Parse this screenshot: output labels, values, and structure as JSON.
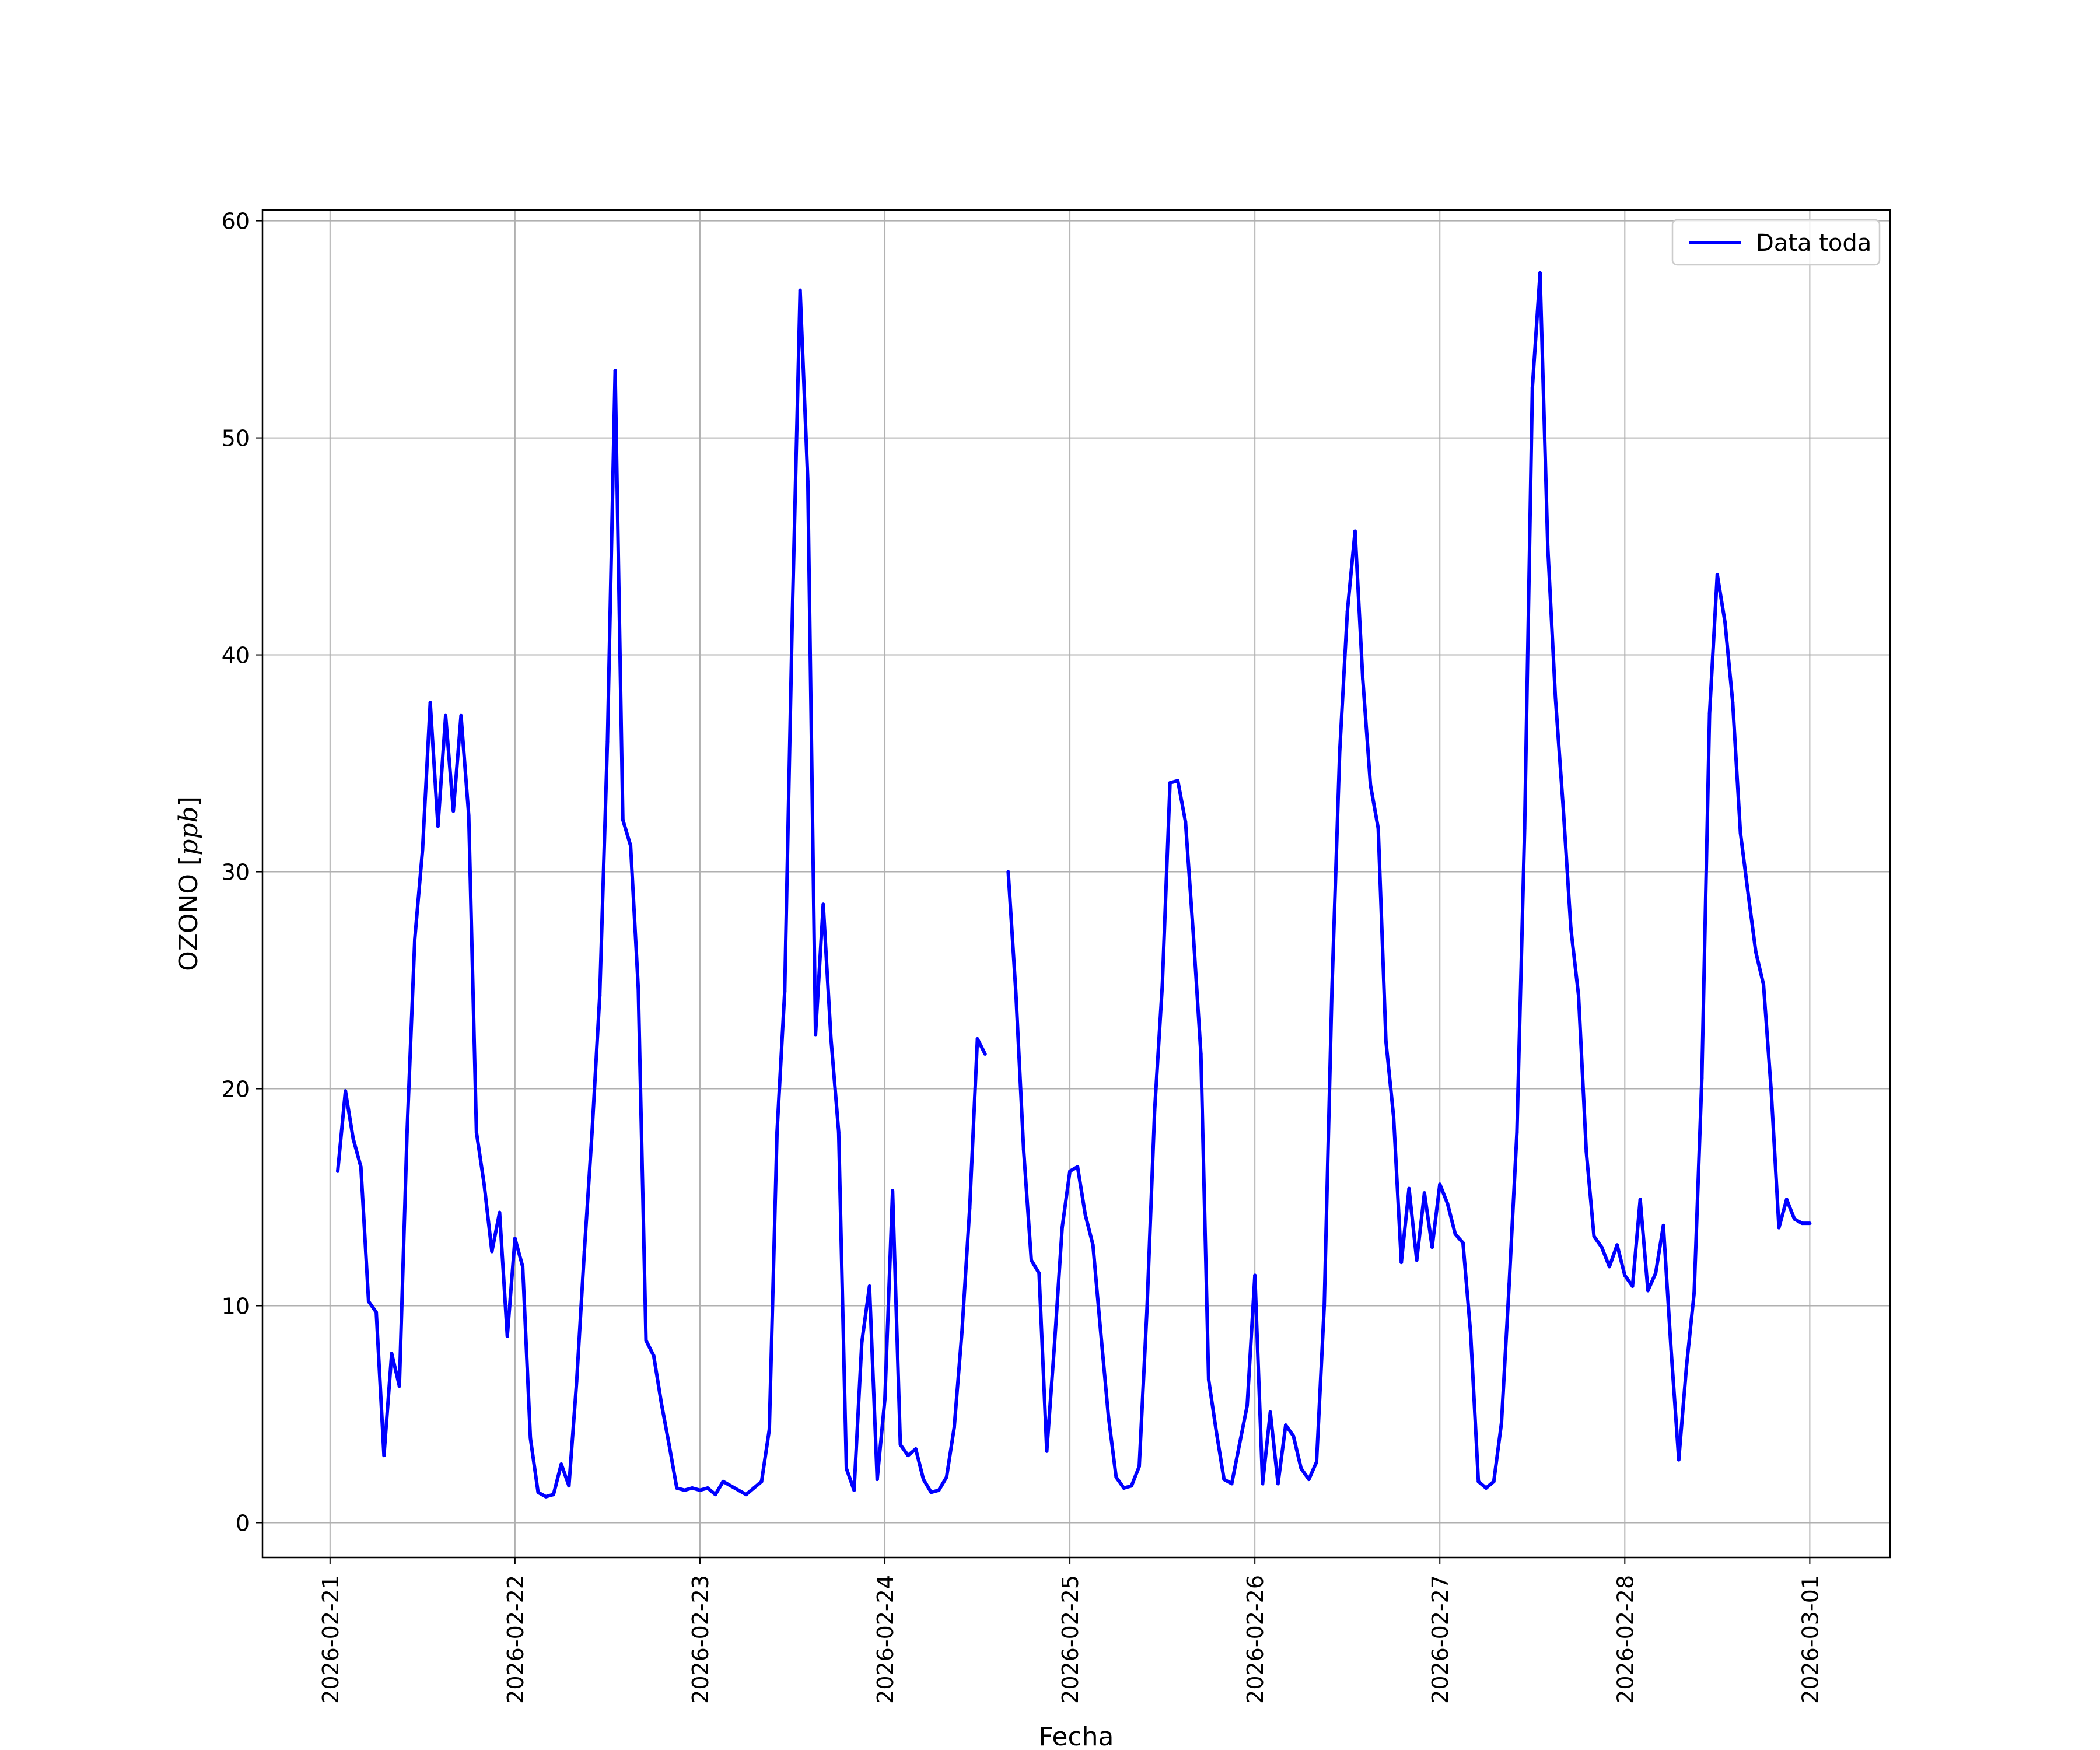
{
  "chart_data": {
    "type": "line",
    "xlabel": "Fecha",
    "ylabel": "OZONO [ppb]",
    "ylabel_parts": {
      "prefix": "OZONO [",
      "unit": "ppb",
      "suffix": "]"
    },
    "xlim": [
      "2026-02-20T15:14",
      "2026-03-01T10:25"
    ],
    "ylim": [
      -1.6,
      60.5
    ],
    "x_ticks": [
      "2026-02-21",
      "2026-02-22",
      "2026-02-23",
      "2026-02-24",
      "2026-02-25",
      "2026-02-26",
      "2026-02-27",
      "2026-02-28",
      "2026-03-01"
    ],
    "y_ticks": [
      0,
      10,
      20,
      30,
      40,
      50,
      60
    ],
    "grid": true,
    "legend_position": "top-right",
    "colors": {
      "series": "#0000ff",
      "grid": "#b0b0b0",
      "axes": "#000000"
    },
    "series": [
      {
        "name": "Data toda",
        "segments": [
          [
            [
              "2026-02-21T01:00",
              16.2
            ],
            [
              "2026-02-21T02:00",
              19.9
            ],
            [
              "2026-02-21T03:00",
              17.7
            ],
            [
              "2026-02-21T04:00",
              16.4
            ],
            [
              "2026-02-21T05:00",
              10.2
            ],
            [
              "2026-02-21T06:00",
              9.7
            ],
            [
              "2026-02-21T07:00",
              3.1
            ],
            [
              "2026-02-21T08:00",
              7.8
            ],
            [
              "2026-02-21T09:00",
              6.3
            ],
            [
              "2026-02-21T10:00",
              18.0
            ],
            [
              "2026-02-21T11:00",
              26.9
            ],
            [
              "2026-02-21T12:00",
              31.0
            ],
            [
              "2026-02-21T13:00",
              37.8
            ],
            [
              "2026-02-21T14:00",
              32.1
            ],
            [
              "2026-02-21T15:00",
              37.2
            ],
            [
              "2026-02-21T16:00",
              32.8
            ],
            [
              "2026-02-21T17:00",
              37.2
            ],
            [
              "2026-02-21T18:00",
              32.6
            ],
            [
              "2026-02-21T19:00",
              18.0
            ],
            [
              "2026-02-21T20:00",
              15.6
            ],
            [
              "2026-02-21T21:00",
              12.5
            ],
            [
              "2026-02-21T22:00",
              14.3
            ],
            [
              "2026-02-21T23:00",
              8.6
            ],
            [
              "2026-02-22T00:00",
              13.1
            ],
            [
              "2026-02-22T01:00",
              11.8
            ],
            [
              "2026-02-22T02:00",
              3.9
            ],
            [
              "2026-02-22T03:00",
              1.4
            ],
            [
              "2026-02-22T04:00",
              1.2
            ],
            [
              "2026-02-22T05:00",
              1.3
            ],
            [
              "2026-02-22T06:00",
              2.7
            ],
            [
              "2026-02-22T07:00",
              1.7
            ],
            [
              "2026-02-22T08:00",
              6.5
            ],
            [
              "2026-02-22T09:00",
              12.5
            ],
            [
              "2026-02-22T10:00",
              18.0
            ],
            [
              "2026-02-22T11:00",
              24.3
            ],
            [
              "2026-02-22T12:00",
              36.0
            ],
            [
              "2026-02-22T13:00",
              53.1
            ],
            [
              "2026-02-22T14:00",
              32.4
            ],
            [
              "2026-02-22T15:00",
              31.2
            ],
            [
              "2026-02-22T16:00",
              24.6
            ],
            [
              "2026-02-22T17:00",
              8.4
            ],
            [
              "2026-02-22T18:00",
              7.7
            ],
            [
              "2026-02-22T19:00",
              5.5
            ],
            [
              "2026-02-22T20:00",
              3.6
            ],
            [
              "2026-02-22T21:00",
              1.6
            ],
            [
              "2026-02-22T22:00",
              1.5
            ],
            [
              "2026-02-22T23:00",
              1.6
            ],
            [
              "2026-02-23T00:00",
              1.5
            ],
            [
              "2026-02-23T01:00",
              1.6
            ],
            [
              "2026-02-23T02:00",
              1.3
            ],
            [
              "2026-02-23T03:00",
              1.9
            ],
            [
              "2026-02-23T04:00",
              1.7
            ],
            [
              "2026-02-23T05:00",
              1.5
            ],
            [
              "2026-02-23T06:00",
              1.3
            ],
            [
              "2026-02-23T07:00",
              1.6
            ],
            [
              "2026-02-23T08:00",
              1.9
            ],
            [
              "2026-02-23T09:00",
              4.3
            ],
            [
              "2026-02-23T10:00",
              18.0
            ],
            [
              "2026-02-23T11:00",
              24.5
            ],
            [
              "2026-02-23T12:00",
              42.0
            ],
            [
              "2026-02-23T13:00",
              56.8
            ],
            [
              "2026-02-23T14:00",
              48.0
            ],
            [
              "2026-02-23T15:00",
              22.5
            ],
            [
              "2026-02-23T16:00",
              28.5
            ],
            [
              "2026-02-23T17:00",
              22.3
            ],
            [
              "2026-02-23T18:00",
              18.0
            ],
            [
              "2026-02-23T19:00",
              2.5
            ],
            [
              "2026-02-23T20:00",
              1.5
            ],
            [
              "2026-02-23T21:00",
              8.3
            ],
            [
              "2026-02-23T22:00",
              10.9
            ],
            [
              "2026-02-23T23:00",
              2.0
            ],
            [
              "2026-02-24T00:00",
              5.7
            ],
            [
              "2026-02-24T01:00",
              15.3
            ],
            [
              "2026-02-24T02:00",
              3.6
            ],
            [
              "2026-02-24T03:00",
              3.1
            ],
            [
              "2026-02-24T04:00",
              3.4
            ],
            [
              "2026-02-24T05:00",
              2.0
            ],
            [
              "2026-02-24T06:00",
              1.4
            ],
            [
              "2026-02-24T07:00",
              1.5
            ],
            [
              "2026-02-24T08:00",
              2.1
            ],
            [
              "2026-02-24T09:00",
              4.4
            ],
            [
              "2026-02-24T10:00",
              8.8
            ],
            [
              "2026-02-24T11:00",
              14.5
            ],
            [
              "2026-02-24T12:00",
              22.3
            ],
            [
              "2026-02-24T13:00",
              21.6
            ]
          ],
          [
            [
              "2026-02-24T16:00",
              30.0
            ],
            [
              "2026-02-24T17:00",
              24.4
            ],
            [
              "2026-02-24T18:00",
              17.2
            ],
            [
              "2026-02-24T19:00",
              12.1
            ],
            [
              "2026-02-24T20:00",
              11.5
            ],
            [
              "2026-02-24T21:00",
              3.3
            ],
            [
              "2026-02-24T22:00",
              8.2
            ],
            [
              "2026-02-24T23:00",
              13.6
            ],
            [
              "2026-02-25T00:00",
              16.2
            ],
            [
              "2026-02-25T01:00",
              16.4
            ],
            [
              "2026-02-25T02:00",
              14.2
            ],
            [
              "2026-02-25T03:00",
              12.8
            ],
            [
              "2026-02-25T04:00",
              8.8
            ],
            [
              "2026-02-25T05:00",
              4.9
            ],
            [
              "2026-02-25T06:00",
              2.1
            ],
            [
              "2026-02-25T07:00",
              1.6
            ],
            [
              "2026-02-25T08:00",
              1.7
            ],
            [
              "2026-02-25T09:00",
              2.6
            ],
            [
              "2026-02-25T10:00",
              9.8
            ],
            [
              "2026-02-25T11:00",
              19.0
            ],
            [
              "2026-02-25T12:00",
              24.8
            ],
            [
              "2026-02-25T13:00",
              34.1
            ],
            [
              "2026-02-25T14:00",
              34.2
            ],
            [
              "2026-02-25T15:00",
              32.3
            ],
            [
              "2026-02-25T16:00",
              27.2
            ],
            [
              "2026-02-25T17:00",
              21.6
            ],
            [
              "2026-02-25T18:00",
              6.6
            ],
            [
              "2026-02-25T19:00",
              4.2
            ],
            [
              "2026-02-25T20:00",
              2.0
            ],
            [
              "2026-02-25T21:00",
              1.8
            ],
            [
              "2026-02-25T22:00",
              3.6
            ],
            [
              "2026-02-25T23:00",
              5.4
            ],
            [
              "2026-02-26T00:00",
              11.4
            ],
            [
              "2026-02-26T01:00",
              1.8
            ],
            [
              "2026-02-26T02:00",
              5.1
            ],
            [
              "2026-02-26T03:00",
              1.8
            ],
            [
              "2026-02-26T04:00",
              4.5
            ],
            [
              "2026-02-26T05:00",
              4.0
            ],
            [
              "2026-02-26T06:00",
              2.5
            ],
            [
              "2026-02-26T07:00",
              2.0
            ],
            [
              "2026-02-26T08:00",
              2.8
            ],
            [
              "2026-02-26T09:00",
              10.0
            ],
            [
              "2026-02-26T10:00",
              24.6
            ],
            [
              "2026-02-26T11:00",
              35.5
            ],
            [
              "2026-02-26T12:00",
              42.0
            ],
            [
              "2026-02-26T13:00",
              45.7
            ],
            [
              "2026-02-26T14:00",
              38.9
            ],
            [
              "2026-02-26T15:00",
              34.0
            ],
            [
              "2026-02-26T16:00",
              32.0
            ],
            [
              "2026-02-26T17:00",
              22.2
            ],
            [
              "2026-02-26T18:00",
              18.7
            ],
            [
              "2026-02-26T19:00",
              12.0
            ],
            [
              "2026-02-26T20:00",
              15.4
            ],
            [
              "2026-02-26T21:00",
              12.1
            ],
            [
              "2026-02-26T22:00",
              15.2
            ],
            [
              "2026-02-26T23:00",
              12.7
            ],
            [
              "2026-02-27T00:00",
              15.6
            ],
            [
              "2026-02-27T01:00",
              14.7
            ],
            [
              "2026-02-27T02:00",
              13.3
            ],
            [
              "2026-02-27T03:00",
              12.9
            ],
            [
              "2026-02-27T04:00",
              8.7
            ],
            [
              "2026-02-27T05:00",
              1.9
            ],
            [
              "2026-02-27T06:00",
              1.6
            ],
            [
              "2026-02-27T07:00",
              1.9
            ],
            [
              "2026-02-27T08:00",
              4.6
            ],
            [
              "2026-02-27T09:00",
              11.0
            ],
            [
              "2026-02-27T10:00",
              18.0
            ],
            [
              "2026-02-27T11:00",
              32.0
            ],
            [
              "2026-02-27T12:00",
              52.3
            ],
            [
              "2026-02-27T13:00",
              57.6
            ],
            [
              "2026-02-27T14:00",
              45.0
            ],
            [
              "2026-02-27T15:00",
              38.0
            ],
            [
              "2026-02-27T16:00",
              33.0
            ],
            [
              "2026-02-27T17:00",
              27.4
            ],
            [
              "2026-02-27T18:00",
              24.3
            ],
            [
              "2026-02-27T19:00",
              17.1
            ],
            [
              "2026-02-27T20:00",
              13.2
            ],
            [
              "2026-02-27T21:00",
              12.7
            ],
            [
              "2026-02-27T22:00",
              11.8
            ],
            [
              "2026-02-27T23:00",
              12.8
            ],
            [
              "2026-02-28T00:00",
              11.4
            ],
            [
              "2026-02-28T01:00",
              10.9
            ],
            [
              "2026-02-28T02:00",
              14.9
            ],
            [
              "2026-02-28T03:00",
              10.7
            ],
            [
              "2026-02-28T04:00",
              11.5
            ],
            [
              "2026-02-28T05:00",
              13.7
            ],
            [
              "2026-02-28T06:00",
              8.0
            ],
            [
              "2026-02-28T07:00",
              2.9
            ],
            [
              "2026-02-28T08:00",
              7.2
            ],
            [
              "2026-02-28T09:00",
              10.6
            ],
            [
              "2026-02-28T10:00",
              20.5
            ],
            [
              "2026-02-28T11:00",
              37.3
            ],
            [
              "2026-02-28T12:00",
              43.7
            ],
            [
              "2026-02-28T13:00",
              41.5
            ],
            [
              "2026-02-28T14:00",
              37.8
            ],
            [
              "2026-02-28T15:00",
              31.8
            ],
            [
              "2026-02-28T16:00",
              29.0
            ],
            [
              "2026-02-28T17:00",
              26.3
            ],
            [
              "2026-02-28T18:00",
              24.8
            ],
            [
              "2026-02-28T19:00",
              19.9
            ],
            [
              "2026-02-28T20:00",
              13.6
            ],
            [
              "2026-02-28T21:00",
              14.9
            ],
            [
              "2026-02-28T22:00",
              14.0
            ],
            [
              "2026-02-28T23:00",
              13.8
            ],
            [
              "2026-03-01T00:00",
              13.8
            ]
          ]
        ]
      }
    ]
  }
}
